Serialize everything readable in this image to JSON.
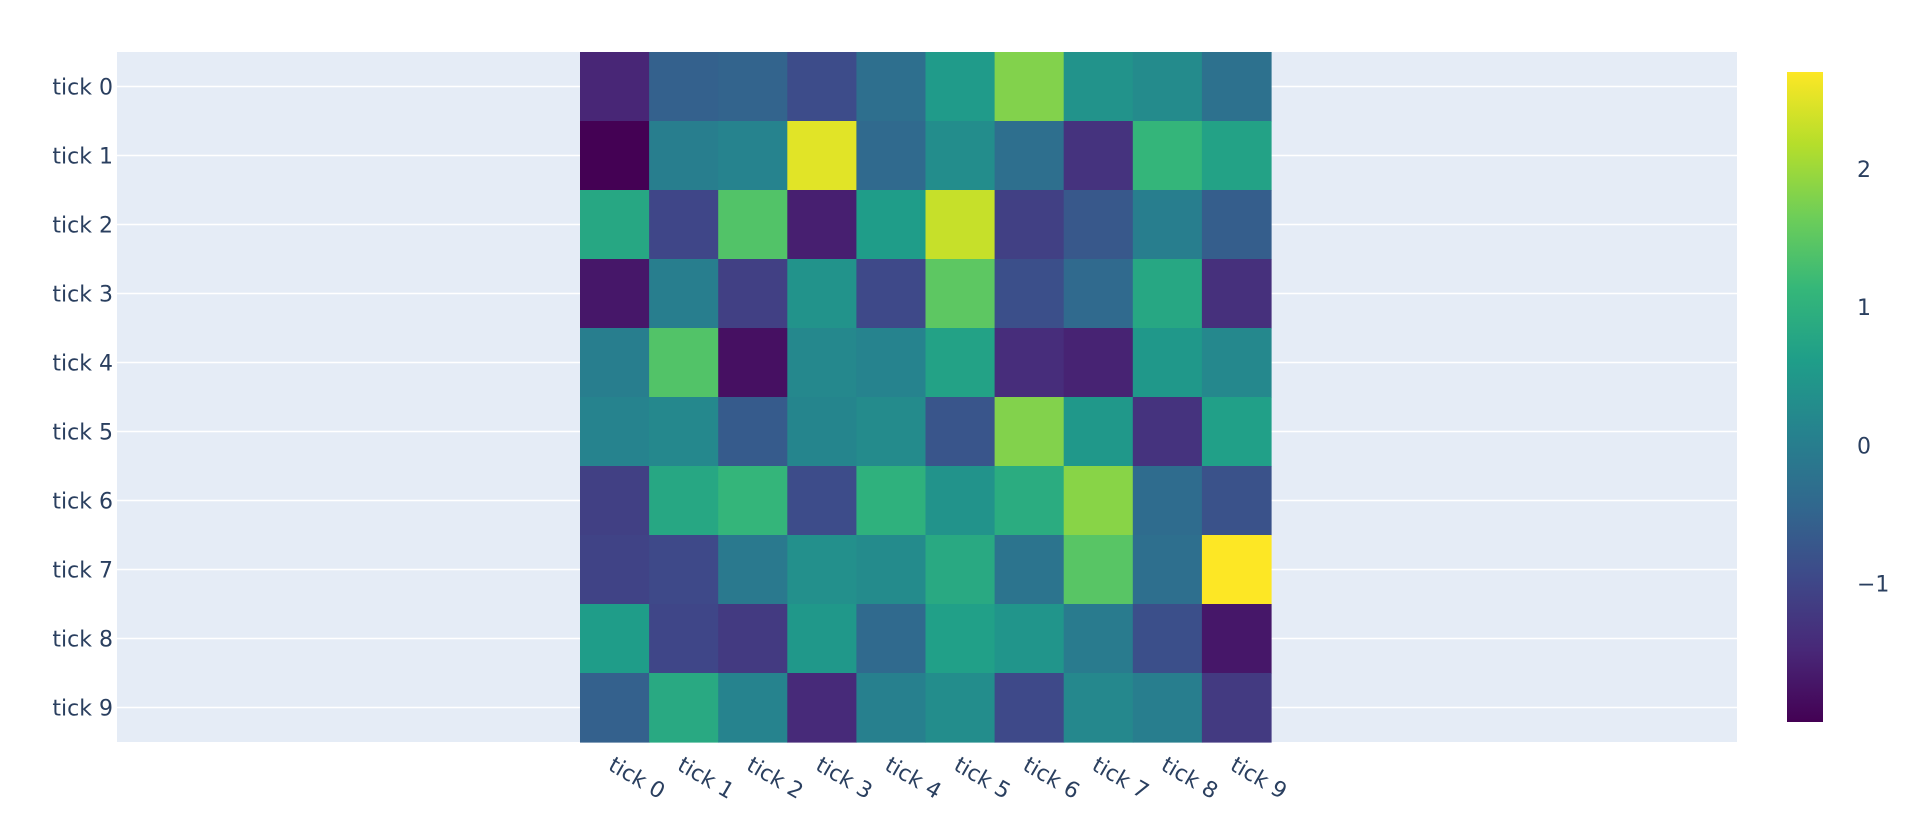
{
  "chart_data": {
    "type": "heatmap",
    "title": "",
    "xlabel": "",
    "ylabel": "",
    "x_categories": [
      "tick 0",
      "tick 1",
      "tick 2",
      "tick 3",
      "tick 4",
      "tick 5",
      "tick 6",
      "tick 7",
      "tick 8",
      "tick 9"
    ],
    "y_categories": [
      "tick 0",
      "tick 1",
      "tick 2",
      "tick 3",
      "tick 4",
      "tick 5",
      "tick 6",
      "tick 7",
      "tick 8",
      "tick 9"
    ],
    "z": [
      [
        -1.5,
        -0.55,
        -0.5,
        -0.9,
        -0.3,
        0.55,
        1.8,
        0.4,
        0.25,
        -0.25
      ],
      [
        -2.0,
        0.0,
        0.1,
        2.5,
        -0.4,
        0.3,
        -0.3,
        -1.3,
        1.1,
        0.7
      ],
      [
        0.8,
        -1.0,
        1.4,
        -1.6,
        0.6,
        2.3,
        -1.1,
        -0.7,
        0.0,
        -0.6
      ],
      [
        -1.7,
        0.0,
        -1.1,
        0.4,
        -0.95,
        1.5,
        -0.85,
        -0.4,
        0.8,
        -1.35
      ],
      [
        0.0,
        1.4,
        -1.8,
        0.2,
        0.1,
        0.7,
        -1.4,
        -1.55,
        0.5,
        0.2
      ],
      [
        0.1,
        0.2,
        -0.65,
        0.15,
        0.25,
        -0.75,
        1.8,
        0.5,
        -1.3,
        0.65
      ],
      [
        -1.1,
        0.8,
        1.1,
        -0.9,
        1.0,
        0.4,
        0.9,
        1.85,
        -0.35,
        -0.8
      ],
      [
        -1.05,
        -0.95,
        -0.1,
        0.35,
        0.25,
        0.85,
        -0.2,
        1.45,
        -0.3,
        2.7
      ],
      [
        0.6,
        -1.0,
        -1.2,
        0.5,
        -0.4,
        0.65,
        0.45,
        -0.05,
        -0.85,
        -1.7
      ],
      [
        -0.55,
        0.85,
        0.1,
        -1.45,
        0.05,
        0.3,
        -0.95,
        0.2,
        0.0,
        -1.2
      ]
    ],
    "zrange": [
      -2.0,
      2.7
    ],
    "colorscale": "Viridis",
    "colorbar_ticks": [
      2,
      1,
      0,
      -1
    ],
    "colorbar_tick_labels": [
      "2",
      "1",
      "0",
      "−1"
    ],
    "plot_bgcolor": "#e5ecf6",
    "gridcolor": "#ffffff",
    "grid": true,
    "legend": "colorbar-right"
  }
}
